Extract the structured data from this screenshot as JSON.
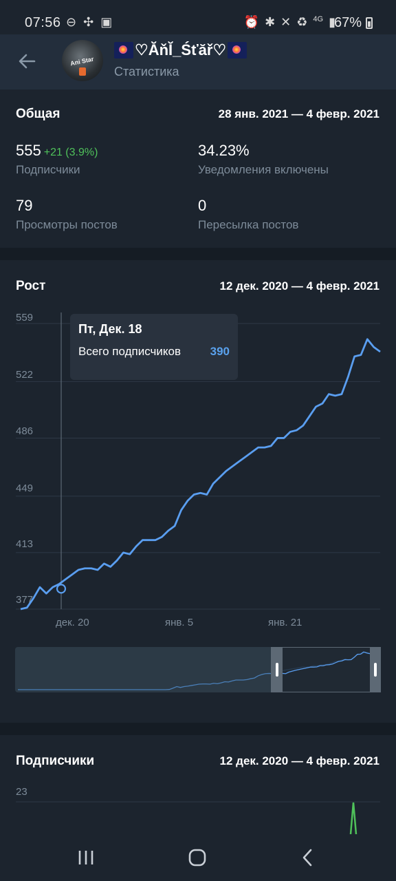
{
  "status_bar": {
    "time": "07:56",
    "battery": "67%",
    "network": "4G",
    "icons_left": [
      "do-not-disturb-icon",
      "pinwheel-icon",
      "gallery-icon"
    ],
    "icons_right": [
      "alarm-icon",
      "bluetooth-icon",
      "mute-icon",
      "battery-saver-icon",
      "signal-icon"
    ]
  },
  "header": {
    "title": "♡ĂňĬ_Śťăř♡",
    "subtitle": "Статистика",
    "avatar_text": "Ani Star"
  },
  "overview": {
    "title": "Общая",
    "date_range": "28 янв. 2021 — 4 февр. 2021",
    "stats": [
      {
        "value": "555",
        "delta": "+21 (3.9%)",
        "label": "Подписчики"
      },
      {
        "value": "34.23%",
        "delta": "",
        "label": "Уведомления включены"
      },
      {
        "value": "79",
        "delta": "",
        "label": "Просмотры постов"
      },
      {
        "value": "0",
        "delta": "",
        "label": "Пересылка постов"
      }
    ]
  },
  "growth": {
    "title": "Рост",
    "date_range": "12 дек. 2020 — 4 февр. 2021",
    "tooltip": {
      "date": "Пт, Дек. 18",
      "label": "Всего подписчиков",
      "value": "390"
    }
  },
  "subscribers": {
    "title": "Подписчики",
    "date_range": "12 дек. 2020 — 4 февр. 2021",
    "ytick": "23"
  },
  "colors": {
    "line": "#5a9ef0",
    "delta_positive": "#4fc15a",
    "green_series": "#4fc15a",
    "background": "#1c242e"
  },
  "chart_data": [
    {
      "type": "line",
      "title": "Рост",
      "yticks": [
        "377",
        "413",
        "449",
        "486",
        "522",
        "559"
      ],
      "xticks": [
        "дек. 20",
        "янв. 5",
        "янв. 21"
      ],
      "ylim": [
        377,
        559
      ],
      "grid": true,
      "series": [
        {
          "values": [
            377,
            378,
            384,
            391,
            387,
            391,
            393,
            396,
            399,
            402,
            403,
            403,
            402,
            406,
            404,
            408,
            413,
            412,
            417,
            421,
            421,
            421,
            423,
            427,
            430,
            440,
            446,
            450,
            451,
            450,
            457,
            461,
            465,
            468,
            471,
            474,
            477,
            480,
            480,
            481,
            486,
            486,
            490,
            491,
            494,
            500,
            506,
            508,
            514,
            513,
            514,
            525,
            538,
            539,
            549,
            544,
            541
          ]
        }
      ],
      "selected_point": {
        "x": "дек. 18",
        "y": 390
      }
    },
    {
      "type": "line",
      "title": "Подписчики",
      "yticks": [
        "23"
      ],
      "series": [
        {
          "values": [
            23
          ]
        }
      ]
    }
  ]
}
